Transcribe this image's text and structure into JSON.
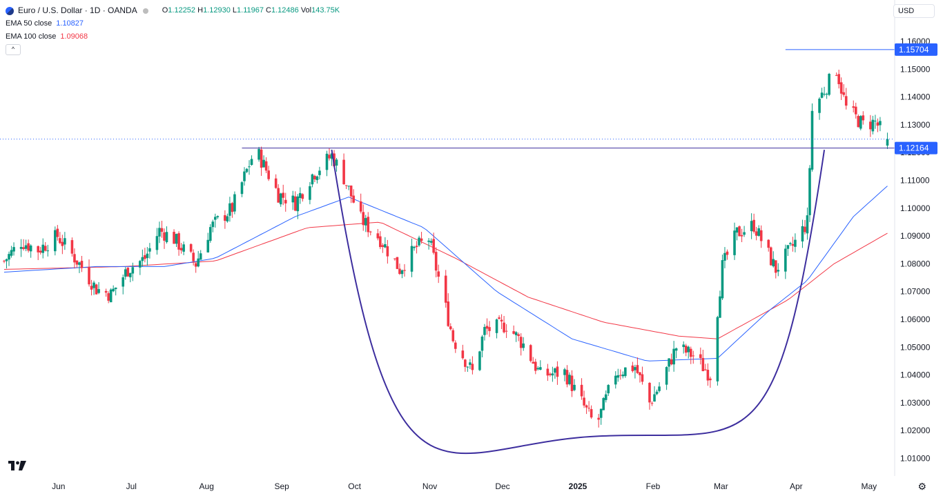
{
  "header": {
    "symbol_title": "Euro / U.S. Dollar · 1D · OANDA",
    "o_label": "O",
    "o_value": "1.12252",
    "h_label": "H",
    "h_value": "1.12930",
    "l_label": "L",
    "l_value": "1.11967",
    "c_label": "C",
    "c_value": "1.12486",
    "vol_label": "Vol",
    "vol_value": "143.75K",
    "ema50_label": "EMA 50 close",
    "ema50_value": "1.10827",
    "ema100_label": "EMA 100 close",
    "ema100_value": "1.09068",
    "collapse_glyph": "^",
    "currency": "USD",
    "settings_glyph": "⚙",
    "logo_text": "TV"
  },
  "colors": {
    "up": "#089981",
    "down": "#f23645",
    "ema50": "#2962ff",
    "ema100": "#f23645",
    "annotation": "#3d2e9e",
    "price_label_bg": "#2962ff"
  },
  "chart_data": {
    "type": "candlestick",
    "price_range": [
      1.0,
      1.165
    ],
    "y_ticks": [
      "1.16000",
      "1.15000",
      "1.14000",
      "1.13000",
      "1.12000",
      "1.11000",
      "1.10000",
      "1.09000",
      "1.08000",
      "1.07000",
      "1.06000",
      "1.05000",
      "1.04000",
      "1.03000",
      "1.02000",
      "1.01000"
    ],
    "x_labels": [
      "Jun",
      "Jul",
      "Aug",
      "Sep",
      "Oct",
      "Nov",
      "Dec",
      "2025",
      "Feb",
      "Mar",
      "Apr",
      "May"
    ],
    "price_labels": [
      {
        "text": "1.15704",
        "value": 1.15704
      },
      {
        "text": "1.12164",
        "value": 1.12164
      }
    ],
    "anchors": [
      [
        "2024-05-13",
        1.081
      ],
      [
        "2024-05-20",
        1.088
      ],
      [
        "2024-05-27",
        1.085
      ],
      [
        "2024-06-04",
        1.09
      ],
      [
        "2024-06-13",
        1.08
      ],
      [
        "2024-06-20",
        1.071
      ],
      [
        "2024-06-26",
        1.069
      ],
      [
        "2024-07-03",
        1.078
      ],
      [
        "2024-07-10",
        1.082
      ],
      [
        "2024-07-16",
        1.092
      ],
      [
        "2024-07-22",
        1.089
      ],
      [
        "2024-07-31",
        1.08
      ],
      [
        "2024-08-06",
        1.093
      ],
      [
        "2024-08-15",
        1.1
      ],
      [
        "2024-08-23",
        1.118
      ],
      [
        "2024-08-26",
        1.119
      ],
      [
        "2024-09-03",
        1.105
      ],
      [
        "2024-09-10",
        1.102
      ],
      [
        "2024-09-17",
        1.112
      ],
      [
        "2024-09-25",
        1.119
      ],
      [
        "2024-09-30",
        1.111
      ],
      [
        "2024-10-07",
        1.096
      ],
      [
        "2024-10-15",
        1.089
      ],
      [
        "2024-10-23",
        1.078
      ],
      [
        "2024-10-30",
        1.086
      ],
      [
        "2024-11-04",
        1.089
      ],
      [
        "2024-11-08",
        1.075
      ],
      [
        "2024-11-14",
        1.053
      ],
      [
        "2024-11-22",
        1.041
      ],
      [
        "2024-11-27",
        1.056
      ],
      [
        "2024-12-06",
        1.058
      ],
      [
        "2024-12-13",
        1.051
      ],
      [
        "2024-12-20",
        1.04
      ],
      [
        "2024-12-30",
        1.041
      ],
      [
        "2025-01-10",
        1.024
      ],
      [
        "2025-01-13",
        1.024
      ],
      [
        "2025-01-20",
        1.041
      ],
      [
        "2025-01-28",
        1.043
      ],
      [
        "2025-02-03",
        1.03
      ],
      [
        "2025-02-07",
        1.036
      ],
      [
        "2025-02-14",
        1.05
      ],
      [
        "2025-02-21",
        1.047
      ],
      [
        "2025-02-28",
        1.04
      ],
      [
        "2025-03-05",
        1.079
      ],
      [
        "2025-03-11",
        1.091
      ],
      [
        "2025-03-18",
        1.094
      ],
      [
        "2025-03-27",
        1.078
      ],
      [
        "2025-04-02",
        1.085
      ],
      [
        "2025-04-09",
        1.095
      ],
      [
        "2025-04-11",
        1.135
      ],
      [
        "2025-04-21",
        1.15
      ],
      [
        "2025-04-25",
        1.136
      ],
      [
        "2025-05-02",
        1.13
      ],
      [
        "2025-05-07",
        1.131
      ],
      [
        "2025-05-12",
        1.1249
      ]
    ],
    "ema50_anchors": [
      [
        "2024-05-13",
        1.077
      ],
      [
        "2024-06-20",
        1.079
      ],
      [
        "2024-07-18",
        1.079
      ],
      [
        "2024-08-08",
        1.082
      ],
      [
        "2024-09-10",
        1.097
      ],
      [
        "2024-10-02",
        1.104
      ],
      [
        "2024-11-02",
        1.093
      ],
      [
        "2024-12-02",
        1.07
      ],
      [
        "2025-01-02",
        1.053
      ],
      [
        "2025-02-02",
        1.045
      ],
      [
        "2025-03-03",
        1.046
      ],
      [
        "2025-03-24",
        1.063
      ],
      [
        "2025-04-09",
        1.074
      ],
      [
        "2025-04-28",
        1.097
      ],
      [
        "2025-05-12",
        1.108
      ]
    ],
    "ema100_anchors": [
      [
        "2024-05-13",
        1.078
      ],
      [
        "2024-07-01",
        1.079
      ],
      [
        "2024-08-08",
        1.081
      ],
      [
        "2024-09-15",
        1.093
      ],
      [
        "2024-10-15",
        1.095
      ],
      [
        "2024-11-15",
        1.082
      ],
      [
        "2024-12-15",
        1.068
      ],
      [
        "2025-01-15",
        1.059
      ],
      [
        "2025-02-15",
        1.054
      ],
      [
        "2025-03-03",
        1.053
      ],
      [
        "2025-04-01",
        1.067
      ],
      [
        "2025-04-20",
        1.08
      ],
      [
        "2025-05-12",
        1.091
      ]
    ],
    "annotations": {
      "resistance_level": 1.12164,
      "resistance_start": "2024-08-19",
      "peak_level": 1.15704,
      "peak_start": "2025-03-31",
      "cup_start": [
        "2024-09-25",
        1.121
      ],
      "cup_bottom": [
        "2025-01-13",
        1.018
      ],
      "cup_end": [
        "2025-04-16",
        1.121
      ]
    }
  }
}
